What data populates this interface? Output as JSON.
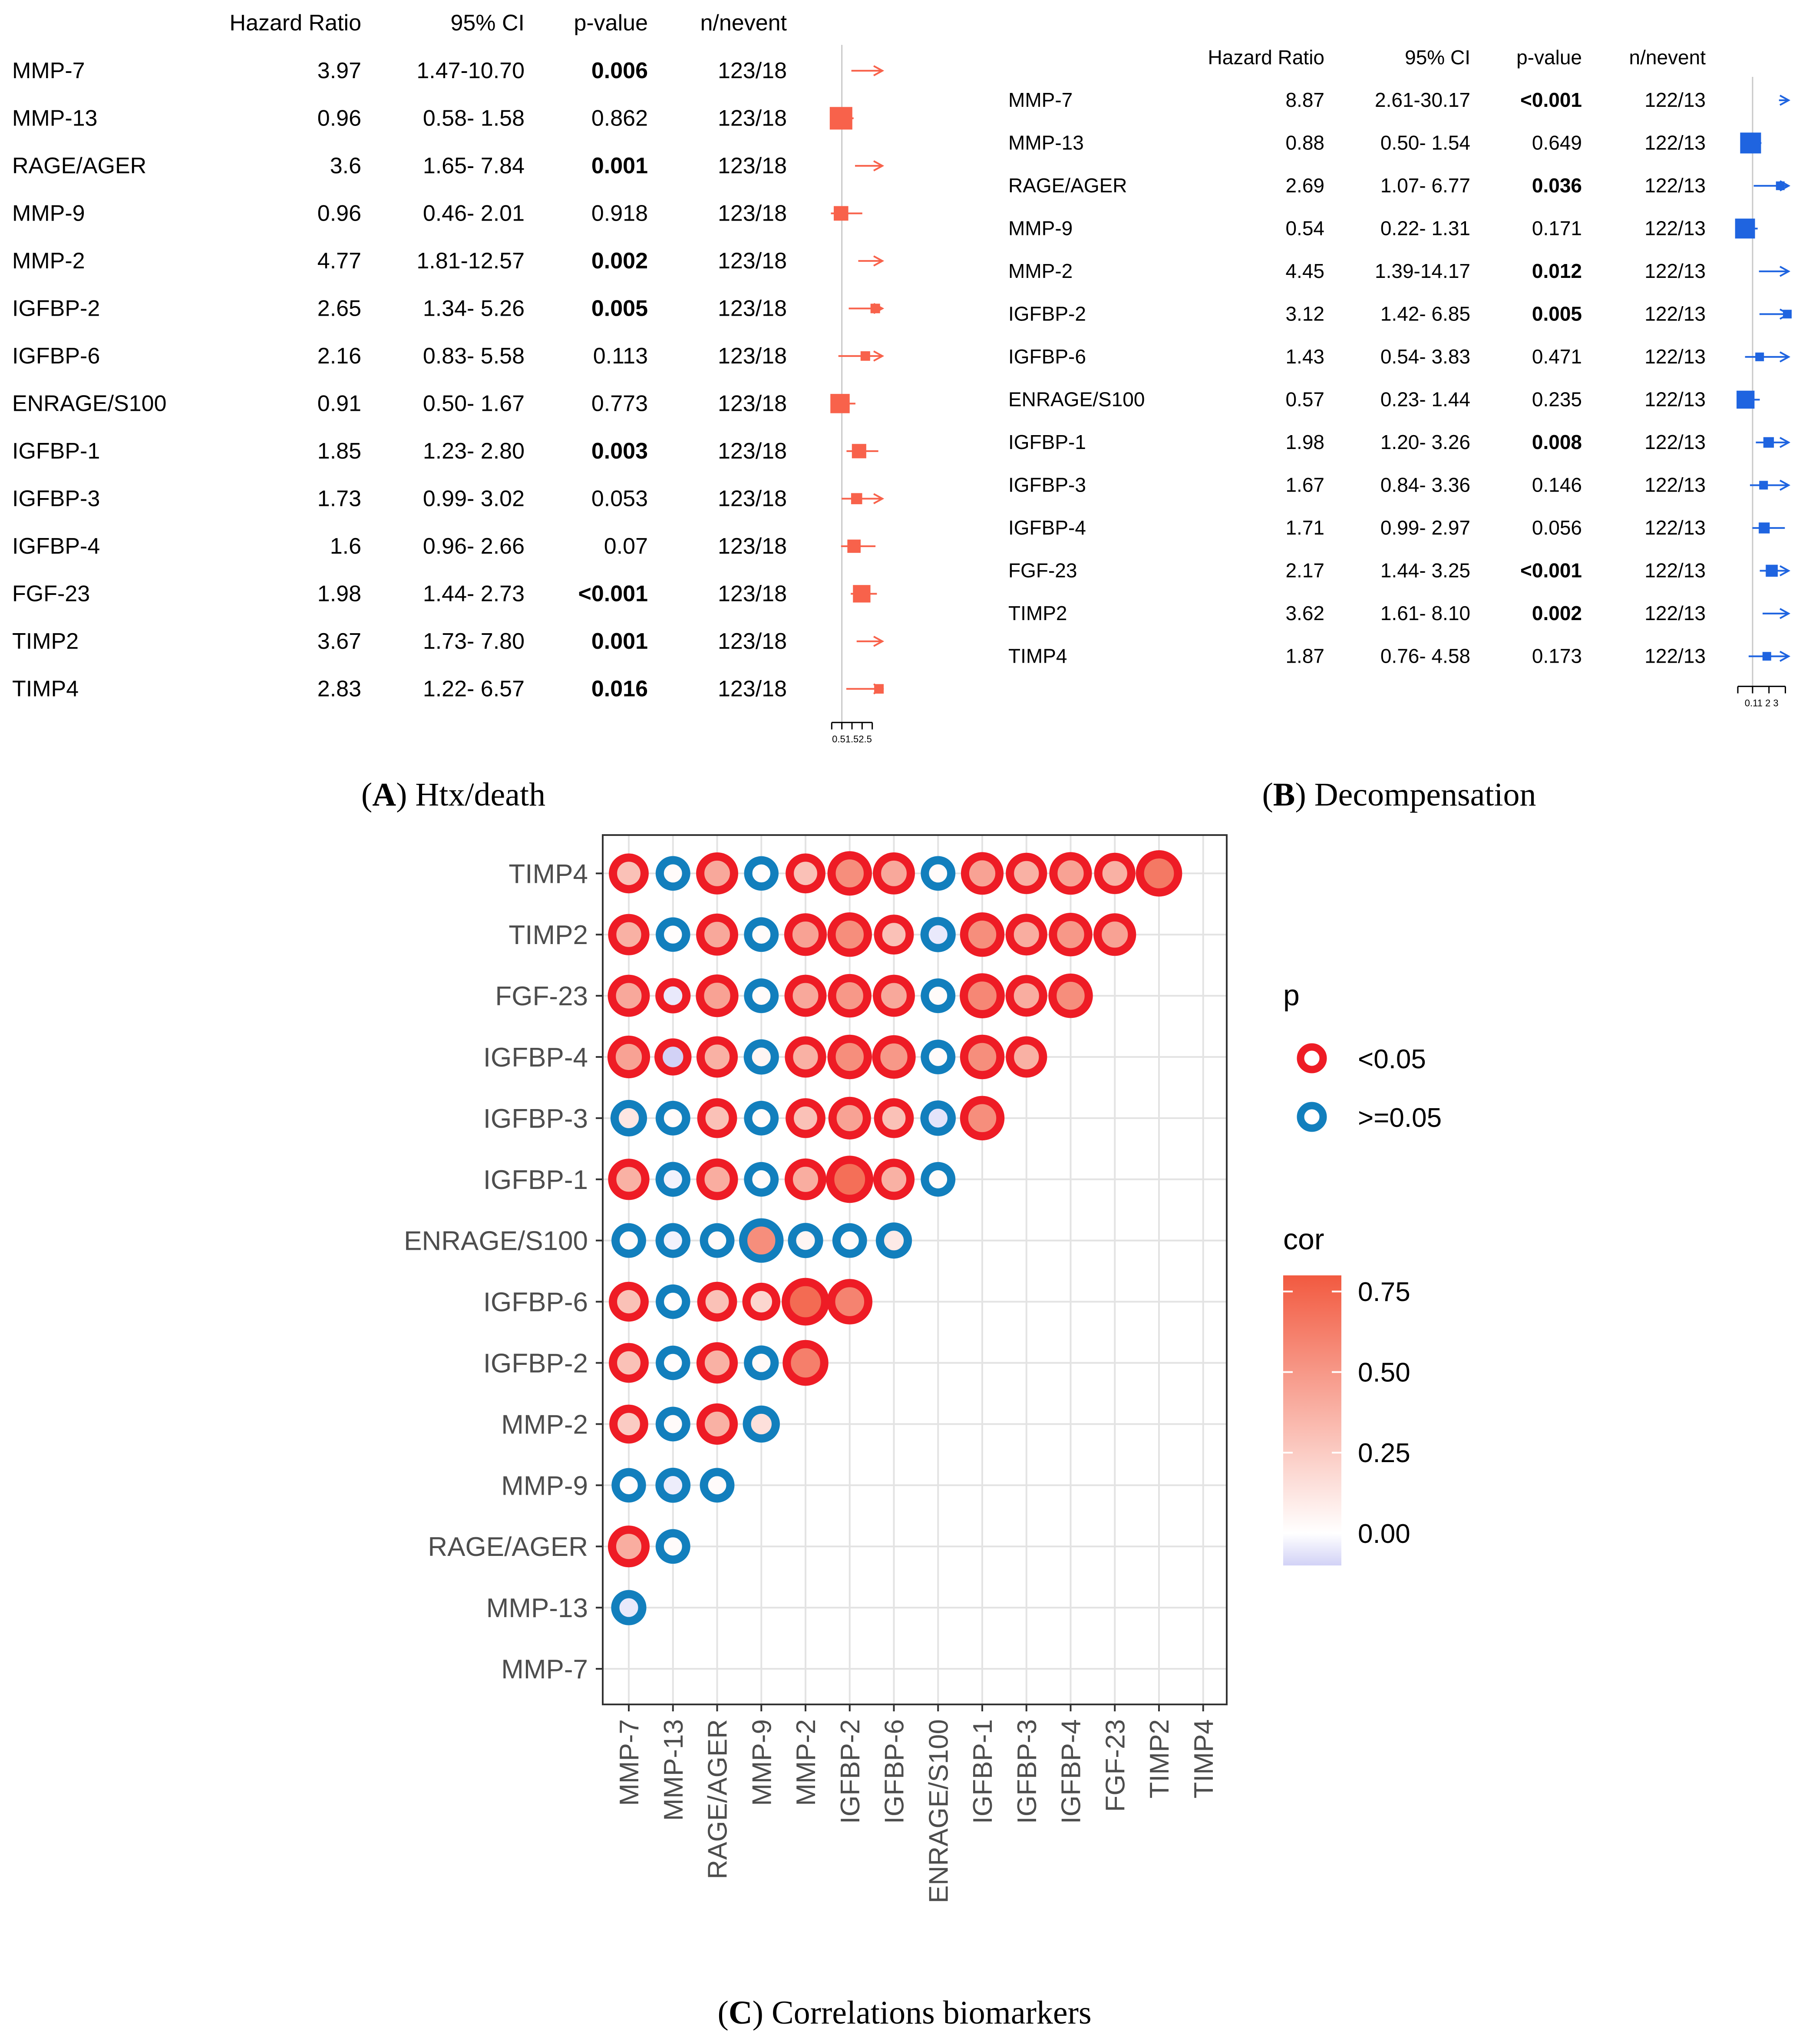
{
  "chart_data": [
    {
      "type": "table",
      "panel": "forest-a",
      "caption": {
        "letter": "A",
        "text": "Htx/death"
      },
      "headers": {
        "hr": "Hazard Ratio",
        "ci": "95% CI",
        "p": "p-value",
        "n": "n/nevent"
      },
      "rows": [
        {
          "label": "MMP-7",
          "hr": "3.97",
          "ci": "1.47-10.70",
          "p": "0.006",
          "bold": true,
          "n": "123/18"
        },
        {
          "label": "MMP-13",
          "hr": "0.96",
          "ci": "0.58- 1.58",
          "p": "0.862",
          "bold": false,
          "n": "123/18"
        },
        {
          "label": "RAGE/AGER",
          "hr": "3.6",
          "ci": "1.65- 7.84",
          "p": "0.001",
          "bold": true,
          "n": "123/18"
        },
        {
          "label": "MMP-9",
          "hr": "0.96",
          "ci": "0.46- 2.01",
          "p": "0.918",
          "bold": false,
          "n": "123/18"
        },
        {
          "label": "MMP-2",
          "hr": "4.77",
          "ci": "1.81-12.57",
          "p": "0.002",
          "bold": true,
          "n": "123/18"
        },
        {
          "label": "IGFBP-2",
          "hr": "2.65",
          "ci": "1.34- 5.26",
          "p": "0.005",
          "bold": true,
          "n": "123/18"
        },
        {
          "label": "IGFBP-6",
          "hr": "2.16",
          "ci": "0.83- 5.58",
          "p": "0.113",
          "bold": false,
          "n": "123/18"
        },
        {
          "label": "ENRAGE/S100",
          "hr": "0.91",
          "ci": "0.50- 1.67",
          "p": "0.773",
          "bold": false,
          "n": "123/18"
        },
        {
          "label": "IGFBP-1",
          "hr": "1.85",
          "ci": "1.23- 2.80",
          "p": "0.003",
          "bold": true,
          "n": "123/18"
        },
        {
          "label": "IGFBP-3",
          "hr": "1.73",
          "ci": "0.99- 3.02",
          "p": "0.053",
          "bold": false,
          "n": "123/18"
        },
        {
          "label": "IGFBP-4",
          "hr": "1.6",
          "ci": "0.96- 2.66",
          "p": "0.07",
          "bold": false,
          "n": "123/18"
        },
        {
          "label": "FGF-23",
          "hr": "1.98",
          "ci": "1.44- 2.73",
          "p": "<0.001",
          "bold": true,
          "n": "123/18"
        },
        {
          "label": "TIMP2",
          "hr": "3.67",
          "ci": "1.73- 7.80",
          "p": "0.001",
          "bold": true,
          "n": "123/18"
        },
        {
          "label": "TIMP4",
          "hr": "2.83",
          "ci": "1.22- 6.57",
          "p": "0.016",
          "bold": true,
          "n": "123/18"
        }
      ],
      "axis": {
        "min": 0.3,
        "max": 3,
        "ticks": [
          0.5,
          1,
          1.5,
          2,
          2.5
        ],
        "tick_label": "0.51.52.5"
      },
      "marker_color": "#f8624b"
    },
    {
      "type": "table",
      "panel": "forest-b",
      "caption": {
        "letter": "B",
        "text": "Decompensation"
      },
      "headers": {
        "hr": "Hazard Ratio",
        "ci": "95% CI",
        "p": "p-value",
        "n": "n/nevent"
      },
      "rows": [
        {
          "label": "MMP-7",
          "hr": "8.87",
          "ci": "2.61-30.17",
          "p": "<0.001",
          "bold": true,
          "n": "122/13"
        },
        {
          "label": "MMP-13",
          "hr": "0.88",
          "ci": "0.50- 1.54",
          "p": "0.649",
          "bold": false,
          "n": "122/13"
        },
        {
          "label": "RAGE/AGER",
          "hr": "2.69",
          "ci": "1.07- 6.77",
          "p": "0.036",
          "bold": true,
          "n": "122/13"
        },
        {
          "label": "MMP-9",
          "hr": "0.54",
          "ci": "0.22- 1.31",
          "p": "0.171",
          "bold": false,
          "n": "122/13"
        },
        {
          "label": "MMP-2",
          "hr": "4.45",
          "ci": "1.39-14.17",
          "p": "0.012",
          "bold": true,
          "n": "122/13"
        },
        {
          "label": "IGFBP-2",
          "hr": "3.12",
          "ci": "1.42- 6.85",
          "p": "0.005",
          "bold": true,
          "n": "122/13"
        },
        {
          "label": "IGFBP-6",
          "hr": "1.43",
          "ci": "0.54- 3.83",
          "p": "0.471",
          "bold": false,
          "n": "122/13"
        },
        {
          "label": "ENRAGE/S100",
          "hr": "0.57",
          "ci": "0.23- 1.44",
          "p": "0.235",
          "bold": false,
          "n": "122/13"
        },
        {
          "label": "IGFBP-1",
          "hr": "1.98",
          "ci": "1.20- 3.26",
          "p": "0.008",
          "bold": true,
          "n": "122/13"
        },
        {
          "label": "IGFBP-3",
          "hr": "1.67",
          "ci": "0.84- 3.36",
          "p": "0.146",
          "bold": false,
          "n": "122/13"
        },
        {
          "label": "IGFBP-4",
          "hr": "1.71",
          "ci": "0.99- 2.97",
          "p": "0.056",
          "bold": false,
          "n": "122/13"
        },
        {
          "label": "FGF-23",
          "hr": "2.17",
          "ci": "1.44- 3.25",
          "p": "<0.001",
          "bold": true,
          "n": "122/13"
        },
        {
          "label": "TIMP2",
          "hr": "3.62",
          "ci": "1.61- 8.10",
          "p": "0.002",
          "bold": true,
          "n": "122/13"
        },
        {
          "label": "TIMP4",
          "hr": "1.87",
          "ci": "0.76- 4.58",
          "p": "0.173",
          "bold": false,
          "n": "122/13"
        }
      ],
      "axis": {
        "min": 0.1,
        "max": 3.2,
        "ticks": [
          0.1,
          1,
          2,
          3
        ],
        "tick_label": "0.11  2  3"
      },
      "marker_color": "#1f64e0"
    },
    {
      "type": "heatmap",
      "panel": "corr-c",
      "caption": {
        "letter": "C",
        "text": "Correlations biomarkers"
      },
      "labels": [
        "MMP-7",
        "MMP-13",
        "RAGE/AGER",
        "MMP-9",
        "MMP-2",
        "IGFBP-2",
        "IGFBP-6",
        "ENRAGE/S100",
        "IGFBP-1",
        "IGFBP-3",
        "IGFBP-4",
        "FGF-23",
        "TIMP2",
        "TIMP4"
      ],
      "legend_p": {
        "title": "p",
        "sig": "<0.05",
        "nonsig": ">=0.05",
        "sig_color": "#ee1c25",
        "nonsig_color": "#127fbd"
      },
      "legend_cor": {
        "title": "cor",
        "ticks": [
          "0.75",
          "0.50",
          "0.25",
          "0.00"
        ],
        "min": -0.1,
        "max": 0.8
      },
      "cells": [
        {
          "row": "MMP-13",
          "col": "MMP-7",
          "cor": -0.05,
          "sig": false
        },
        {
          "row": "RAGE/AGER",
          "col": "MMP-7",
          "cor": 0.4,
          "sig": true
        },
        {
          "row": "RAGE/AGER",
          "col": "MMP-13",
          "cor": 0.02,
          "sig": false
        },
        {
          "row": "MMP-9",
          "col": "MMP-7",
          "cor": 0.01,
          "sig": false
        },
        {
          "row": "MMP-9",
          "col": "MMP-13",
          "cor": -0.04,
          "sig": false
        },
        {
          "row": "MMP-9",
          "col": "RAGE/AGER",
          "cor": 0.02,
          "sig": false
        },
        {
          "row": "MMP-2",
          "col": "MMP-7",
          "cor": 0.25,
          "sig": true
        },
        {
          "row": "MMP-2",
          "col": "MMP-13",
          "cor": 0.02,
          "sig": false
        },
        {
          "row": "MMP-2",
          "col": "RAGE/AGER",
          "cor": 0.38,
          "sig": true
        },
        {
          "row": "MMP-2",
          "col": "MMP-9",
          "cor": 0.15,
          "sig": false
        },
        {
          "row": "IGFBP-2",
          "col": "MMP-7",
          "cor": 0.3,
          "sig": true
        },
        {
          "row": "IGFBP-2",
          "col": "MMP-13",
          "cor": 0.01,
          "sig": false
        },
        {
          "row": "IGFBP-2",
          "col": "RAGE/AGER",
          "cor": 0.38,
          "sig": true
        },
        {
          "row": "IGFBP-2",
          "col": "MMP-9",
          "cor": 0.03,
          "sig": false
        },
        {
          "row": "IGFBP-2",
          "col": "MMP-2",
          "cor": 0.62,
          "sig": true
        },
        {
          "row": "IGFBP-6",
          "col": "MMP-7",
          "cor": 0.3,
          "sig": true
        },
        {
          "row": "IGFBP-6",
          "col": "MMP-13",
          "cor": 0.01,
          "sig": false
        },
        {
          "row": "IGFBP-6",
          "col": "RAGE/AGER",
          "cor": 0.3,
          "sig": true
        },
        {
          "row": "IGFBP-6",
          "col": "MMP-9",
          "cor": 0.2,
          "sig": true
        },
        {
          "row": "IGFBP-6",
          "col": "MMP-2",
          "cor": 0.72,
          "sig": true
        },
        {
          "row": "IGFBP-6",
          "col": "IGFBP-2",
          "cor": 0.6,
          "sig": true
        },
        {
          "row": "ENRAGE/S100",
          "col": "MMP-7",
          "cor": 0.02,
          "sig": false
        },
        {
          "row": "ENRAGE/S100",
          "col": "MMP-13",
          "cor": -0.03,
          "sig": false
        },
        {
          "row": "ENRAGE/S100",
          "col": "RAGE/AGER",
          "cor": 0.02,
          "sig": false
        },
        {
          "row": "ENRAGE/S100",
          "col": "MMP-9",
          "cor": 0.55,
          "sig": false
        },
        {
          "row": "ENRAGE/S100",
          "col": "MMP-2",
          "cor": 0.05,
          "sig": false
        },
        {
          "row": "ENRAGE/S100",
          "col": "IGFBP-2",
          "cor": 0.02,
          "sig": false
        },
        {
          "row": "ENRAGE/S100",
          "col": "IGFBP-6",
          "cor": 0.1,
          "sig": false
        },
        {
          "row": "IGFBP-1",
          "col": "MMP-7",
          "cor": 0.38,
          "sig": true
        },
        {
          "row": "IGFBP-1",
          "col": "MMP-13",
          "cor": -0.03,
          "sig": false
        },
        {
          "row": "IGFBP-1",
          "col": "RAGE/AGER",
          "cor": 0.4,
          "sig": true
        },
        {
          "row": "IGFBP-1",
          "col": "MMP-9",
          "cor": 0.02,
          "sig": false
        },
        {
          "row": "IGFBP-1",
          "col": "MMP-2",
          "cor": 0.4,
          "sig": true
        },
        {
          "row": "IGFBP-1",
          "col": "IGFBP-2",
          "cor": 0.7,
          "sig": true
        },
        {
          "row": "IGFBP-1",
          "col": "IGFBP-6",
          "cor": 0.38,
          "sig": true
        },
        {
          "row": "IGFBP-1",
          "col": "ENRAGE/S100",
          "cor": 0.02,
          "sig": false
        },
        {
          "row": "IGFBP-3",
          "col": "MMP-7",
          "cor": 0.12,
          "sig": false
        },
        {
          "row": "IGFBP-3",
          "col": "MMP-13",
          "cor": 0.02,
          "sig": false
        },
        {
          "row": "IGFBP-3",
          "col": "RAGE/AGER",
          "cor": 0.3,
          "sig": true
        },
        {
          "row": "IGFBP-3",
          "col": "MMP-9",
          "cor": 0.02,
          "sig": false
        },
        {
          "row": "IGFBP-3",
          "col": "MMP-2",
          "cor": 0.3,
          "sig": true
        },
        {
          "row": "IGFBP-3",
          "col": "IGFBP-2",
          "cor": 0.45,
          "sig": true
        },
        {
          "row": "IGFBP-3",
          "col": "IGFBP-6",
          "cor": 0.3,
          "sig": true
        },
        {
          "row": "IGFBP-3",
          "col": "ENRAGE/S100",
          "cor": -0.06,
          "sig": false
        },
        {
          "row": "IGFBP-3",
          "col": "IGFBP-1",
          "cor": 0.55,
          "sig": true
        },
        {
          "row": "IGFBP-4",
          "col": "MMP-7",
          "cor": 0.45,
          "sig": true
        },
        {
          "row": "IGFBP-4",
          "col": "MMP-13",
          "cor": -0.15,
          "sig": true
        },
        {
          "row": "IGFBP-4",
          "col": "RAGE/AGER",
          "cor": 0.38,
          "sig": true
        },
        {
          "row": "IGFBP-4",
          "col": "MMP-9",
          "cor": 0.05,
          "sig": false
        },
        {
          "row": "IGFBP-4",
          "col": "MMP-2",
          "cor": 0.38,
          "sig": true
        },
        {
          "row": "IGFBP-4",
          "col": "IGFBP-2",
          "cor": 0.55,
          "sig": true
        },
        {
          "row": "IGFBP-4",
          "col": "IGFBP-6",
          "cor": 0.5,
          "sig": true
        },
        {
          "row": "IGFBP-4",
          "col": "ENRAGE/S100",
          "cor": 0.02,
          "sig": false
        },
        {
          "row": "IGFBP-4",
          "col": "IGFBP-1",
          "cor": 0.55,
          "sig": true
        },
        {
          "row": "IGFBP-4",
          "col": "IGFBP-3",
          "cor": 0.38,
          "sig": true
        },
        {
          "row": "FGF-23",
          "col": "MMP-7",
          "cor": 0.42,
          "sig": true
        },
        {
          "row": "FGF-23",
          "col": "MMP-13",
          "cor": -0.05,
          "sig": true
        },
        {
          "row": "FGF-23",
          "col": "RAGE/AGER",
          "cor": 0.45,
          "sig": true
        },
        {
          "row": "FGF-23",
          "col": "MMP-9",
          "cor": 0.02,
          "sig": false
        },
        {
          "row": "FGF-23",
          "col": "MMP-2",
          "cor": 0.42,
          "sig": true
        },
        {
          "row": "FGF-23",
          "col": "IGFBP-2",
          "cor": 0.5,
          "sig": true
        },
        {
          "row": "FGF-23",
          "col": "IGFBP-6",
          "cor": 0.42,
          "sig": true
        },
        {
          "row": "FGF-23",
          "col": "ENRAGE/S100",
          "cor": 0.02,
          "sig": false
        },
        {
          "row": "FGF-23",
          "col": "IGFBP-1",
          "cor": 0.58,
          "sig": true
        },
        {
          "row": "FGF-23",
          "col": "IGFBP-3",
          "cor": 0.4,
          "sig": true
        },
        {
          "row": "FGF-23",
          "col": "IGFBP-4",
          "cor": 0.55,
          "sig": true
        },
        {
          "row": "TIMP2",
          "col": "MMP-7",
          "cor": 0.38,
          "sig": true
        },
        {
          "row": "TIMP2",
          "col": "MMP-13",
          "cor": 0.01,
          "sig": false
        },
        {
          "row": "TIMP2",
          "col": "RAGE/AGER",
          "cor": 0.42,
          "sig": true
        },
        {
          "row": "TIMP2",
          "col": "MMP-9",
          "cor": 0.02,
          "sig": false
        },
        {
          "row": "TIMP2",
          "col": "MMP-2",
          "cor": 0.45,
          "sig": true
        },
        {
          "row": "TIMP2",
          "col": "IGFBP-2",
          "cor": 0.55,
          "sig": true
        },
        {
          "row": "TIMP2",
          "col": "IGFBP-6",
          "cor": 0.3,
          "sig": true
        },
        {
          "row": "TIMP2",
          "col": "ENRAGE/S100",
          "cor": -0.05,
          "sig": false
        },
        {
          "row": "TIMP2",
          "col": "IGFBP-1",
          "cor": 0.55,
          "sig": true
        },
        {
          "row": "TIMP2",
          "col": "IGFBP-3",
          "cor": 0.4,
          "sig": true
        },
        {
          "row": "TIMP2",
          "col": "IGFBP-4",
          "cor": 0.5,
          "sig": true
        },
        {
          "row": "TIMP2",
          "col": "FGF-23",
          "cor": 0.45,
          "sig": true
        },
        {
          "row": "TIMP4",
          "col": "MMP-7",
          "cor": 0.3,
          "sig": true
        },
        {
          "row": "TIMP4",
          "col": "MMP-13",
          "cor": 0.02,
          "sig": false
        },
        {
          "row": "TIMP4",
          "col": "RAGE/AGER",
          "cor": 0.42,
          "sig": true
        },
        {
          "row": "TIMP4",
          "col": "MMP-9",
          "cor": 0.01,
          "sig": false
        },
        {
          "row": "TIMP4",
          "col": "MMP-2",
          "cor": 0.3,
          "sig": true
        },
        {
          "row": "TIMP4",
          "col": "IGFBP-2",
          "cor": 0.55,
          "sig": true
        },
        {
          "row": "TIMP4",
          "col": "IGFBP-6",
          "cor": 0.42,
          "sig": true
        },
        {
          "row": "TIMP4",
          "col": "ENRAGE/S100",
          "cor": 0.02,
          "sig": false
        },
        {
          "row": "TIMP4",
          "col": "IGFBP-1",
          "cor": 0.45,
          "sig": true
        },
        {
          "row": "TIMP4",
          "col": "IGFBP-3",
          "cor": 0.38,
          "sig": true
        },
        {
          "row": "TIMP4",
          "col": "IGFBP-4",
          "cor": 0.45,
          "sig": true
        },
        {
          "row": "TIMP4",
          "col": "FGF-23",
          "cor": 0.38,
          "sig": true
        },
        {
          "row": "TIMP4",
          "col": "TIMP2",
          "cor": 0.65,
          "sig": true
        }
      ]
    }
  ]
}
